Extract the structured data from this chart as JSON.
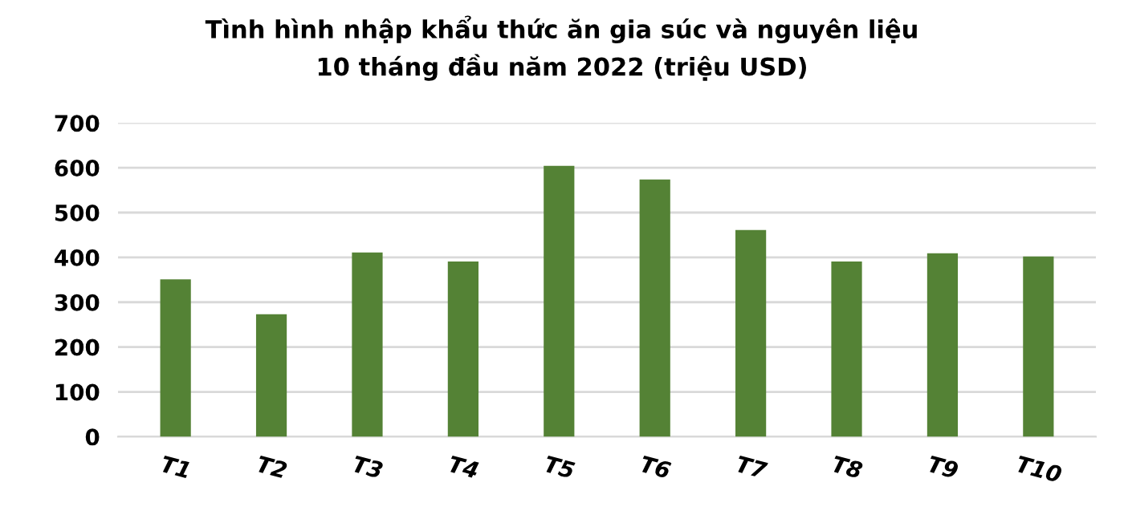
{
  "chart_data": {
    "type": "bar",
    "title": "Tình hình nhập khẩu thức ăn gia súc và nguyên liệu\n10 tháng đầu năm 2022 (triệu USD)",
    "categories": [
      "T1",
      "T2",
      "T3",
      "T4",
      "T5",
      "T6",
      "T7",
      "T8",
      "T9",
      "T10"
    ],
    "values": [
      351,
      273,
      411,
      391,
      604,
      574,
      461,
      391,
      409,
      402
    ],
    "color": "#548235",
    "ylim": [
      0,
      700
    ],
    "yticks": [
      0,
      100,
      200,
      300,
      400,
      500,
      600,
      700
    ],
    "grid": "y"
  }
}
